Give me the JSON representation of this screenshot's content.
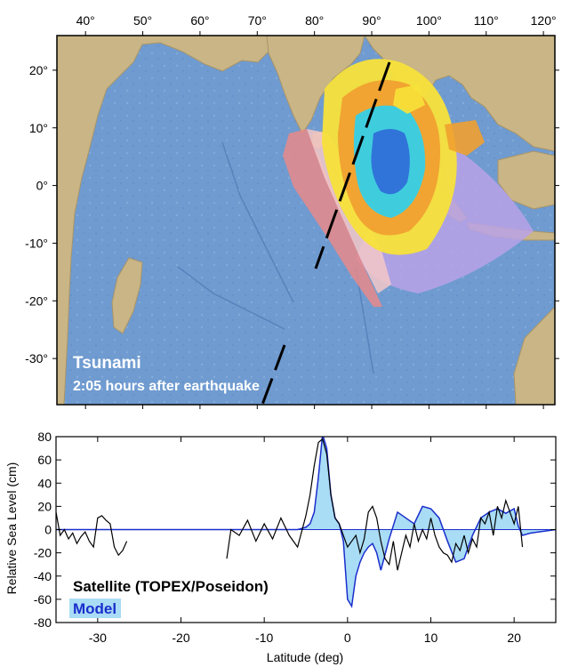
{
  "map": {
    "caption_title": "Tsunami",
    "caption_subtitle": "2:05 hours after earthquake",
    "lon_ticks": [
      40,
      50,
      60,
      70,
      80,
      90,
      100,
      110,
      120
    ],
    "lat_ticks": [
      20,
      10,
      0,
      -10,
      -20,
      -30
    ],
    "lon_range": [
      35,
      122
    ],
    "lat_range": [
      -38,
      26
    ],
    "degree_symbol": "°",
    "colors": {
      "ocean": "#6f9bd0",
      "land": "#c9b585",
      "wave_red": "#e88a8a",
      "wave_pink": "#f5c8c8",
      "wave_yellow": "#f7e23a",
      "wave_orange": "#f0a030",
      "wave_cyan": "#35d0e8",
      "wave_blue": "#2f6fd8",
      "wave_purple": "#b9a2e8",
      "track": "#000000"
    }
  },
  "chart_data": {
    "type": "line",
    "xlabel": "Latitude (deg)",
    "ylabel": "Relative Sea Level (cm)",
    "xlim": [
      -35,
      25
    ],
    "ylim": [
      -80,
      80
    ],
    "x_ticks": [
      -30,
      -20,
      -10,
      0,
      10,
      20
    ],
    "y_ticks": [
      80,
      60,
      40,
      20,
      0,
      -20,
      -40,
      -60,
      -80
    ],
    "legend": [
      "Satellite (TOPEX/Poseidon)",
      "Model"
    ],
    "legend_placement": "bottom-left",
    "series": [
      {
        "name": "Model",
        "color": "#1a2ecc",
        "fill": "#a9dcf5",
        "x": [
          -35,
          -6,
          -5,
          -4.5,
          -4,
          -3.5,
          -3,
          -2.5,
          -2,
          -1.5,
          -1,
          -0.5,
          0,
          0.5,
          1,
          1.5,
          2,
          2.5,
          3,
          3.5,
          4,
          5,
          6,
          7,
          8,
          9,
          10,
          11,
          12,
          13,
          14,
          15,
          16,
          17,
          18,
          19,
          20,
          20.5,
          21,
          22,
          25
        ],
        "y": [
          0,
          0,
          2,
          5,
          15,
          45,
          82,
          70,
          30,
          10,
          5,
          -10,
          -60,
          -66,
          -40,
          -28,
          -20,
          -15,
          -12,
          -20,
          -35,
          -8,
          15,
          10,
          5,
          20,
          18,
          10,
          -10,
          -28,
          -25,
          -5,
          10,
          15,
          18,
          14,
          18,
          3,
          -5,
          -3,
          0
        ]
      },
      {
        "name": "Satellite (TOPEX/Poseidon)",
        "color": "#000000",
        "x": [
          -35,
          -34.5,
          -34,
          -33.5,
          -33,
          -32.5,
          -32,
          -31.5,
          -31,
          -30.5,
          -30,
          -29.5,
          -29,
          -28.5,
          -28,
          -27.5,
          -27,
          -26.5,
          -26,
          -25,
          -24,
          -22,
          -20,
          -18,
          -16,
          -14.5,
          -14,
          -13,
          -12,
          -11,
          -10,
          -9,
          -8,
          -7,
          -6,
          -5,
          -4.5,
          -4,
          -3.5,
          -3,
          -2.5,
          -2,
          -1.5,
          -1,
          -0.5,
          0,
          0.5,
          1,
          1.5,
          2,
          2.5,
          3,
          3.5,
          4,
          4.5,
          5,
          5.5,
          6,
          6.5,
          7,
          7.5,
          8,
          8.5,
          9,
          9.5,
          10,
          10.5,
          11,
          11.5,
          12,
          12.5,
          13,
          13.5,
          14,
          14.5,
          15,
          15.5,
          16,
          16.5,
          17,
          17.5,
          18,
          18.5,
          19,
          19.5,
          20,
          20.5,
          21
        ],
        "y": [
          15,
          -5,
          0,
          -8,
          -3,
          -12,
          -6,
          -2,
          -10,
          -15,
          10,
          12,
          8,
          5,
          -15,
          -22,
          -18,
          -10,
          null,
          null,
          null,
          null,
          null,
          null,
          null,
          -25,
          0,
          -5,
          8,
          -10,
          5,
          -8,
          10,
          -5,
          -15,
          12,
          30,
          55,
          75,
          78,
          65,
          30,
          10,
          5,
          -5,
          -15,
          -10,
          -5,
          -20,
          -8,
          15,
          20,
          10,
          -10,
          -25,
          -30,
          -10,
          -35,
          -20,
          -5,
          -15,
          5,
          -10,
          0,
          -8,
          10,
          -5,
          -15,
          -20,
          -22,
          -28,
          -12,
          -18,
          -5,
          -20,
          -8,
          -15,
          10,
          5,
          15,
          -5,
          20,
          10,
          25,
          15,
          5,
          20,
          -15
        ]
      }
    ]
  }
}
